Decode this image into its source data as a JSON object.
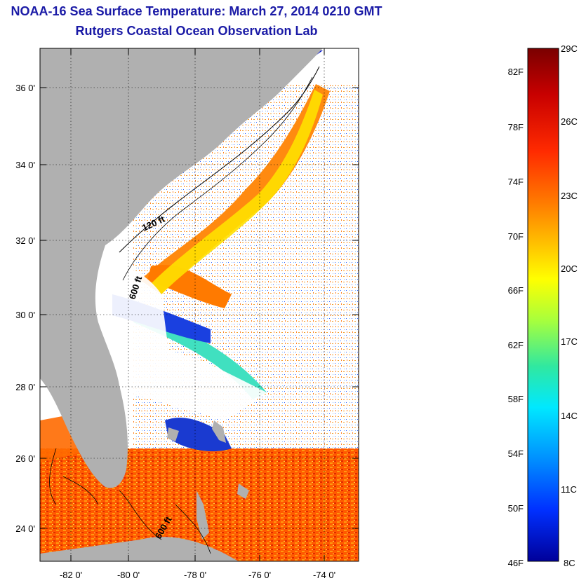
{
  "header": {
    "title": "NOAA-16 Sea Surface Temperature:  March 27, 2014 0210 GMT",
    "subtitle": "Rutgers Coastal Ocean Observation Lab"
  },
  "map": {
    "lat_labels": [
      "36 0'",
      "34 0'",
      "32 0'",
      "30 0'",
      "28 0'",
      "26 0'",
      "24 0'"
    ],
    "lon_labels": [
      "-82 0'",
      "-80 0'",
      "-78 0'",
      "-76 0'",
      "-74 0'"
    ],
    "contour_labels": [
      "120 ft",
      "600 ft",
      "600 ft"
    ],
    "land_color": "#b0b0b0",
    "cloud_color": "#ffffff"
  },
  "colorbar": {
    "fahrenheit_labels": [
      "82F",
      "78F",
      "74F",
      "70F",
      "66F",
      "62F",
      "58F",
      "54F",
      "50F",
      "46F"
    ],
    "celsius_labels": [
      "29C",
      "26C",
      "23C",
      "20C",
      "17C",
      "14C",
      "11C",
      "8C"
    ],
    "colors": [
      "#7a0000",
      "#d40000",
      "#ff3c00",
      "#ff8c00",
      "#ffd000",
      "#ffff00",
      "#a0ff40",
      "#30e0a0",
      "#00e0ff",
      "#0090ff",
      "#0030ff",
      "#0000a0"
    ]
  }
}
